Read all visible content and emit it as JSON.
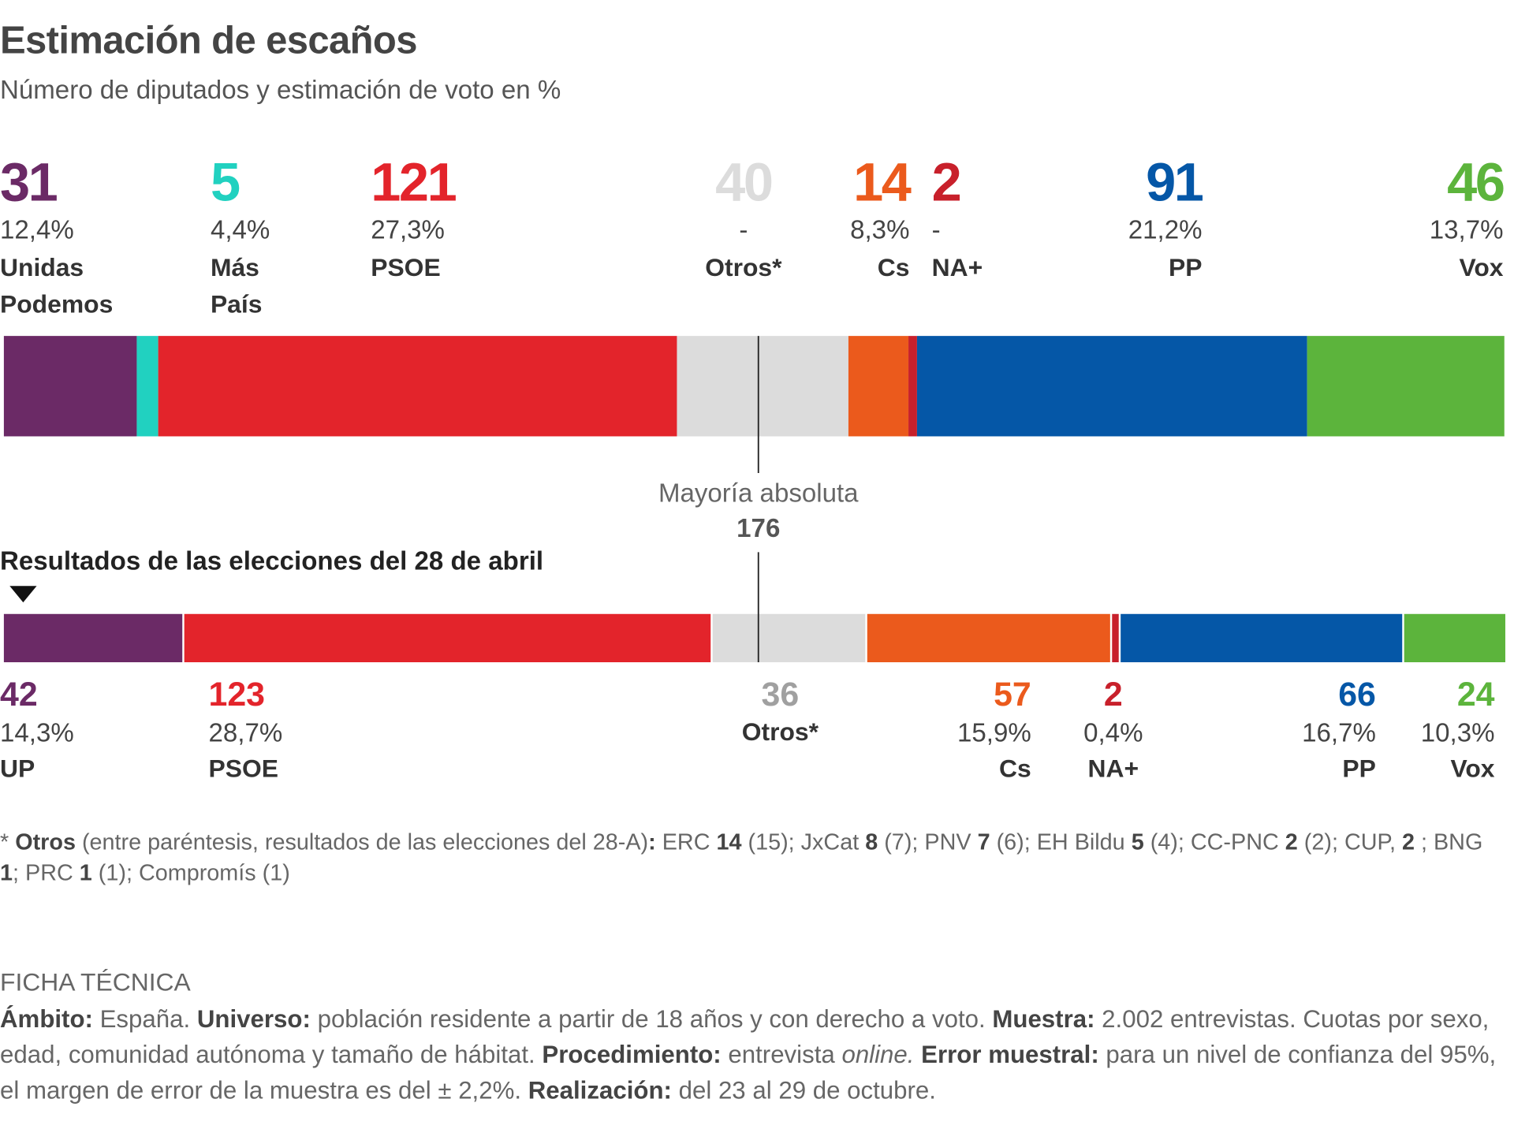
{
  "title": "Estimación de escaños",
  "subtitle": "Número de diputados y estimación de voto en %",
  "chart_data": [
    {
      "type": "seat-bar",
      "categories": [
        "Unidas Podemos",
        "Más País",
        "PSOE",
        "Otros*",
        "Cs",
        "NA+",
        "PP",
        "Vox"
      ],
      "values": [
        31,
        5,
        121,
        40,
        14,
        2,
        91,
        46
      ],
      "vote_share": [
        12.4,
        4.4,
        27.3,
        null,
        8.3,
        null,
        21.2,
        13.7
      ],
      "vote_share_labels": [
        "12,4%",
        "4,4%",
        "27,3%",
        "-",
        "8,3%",
        "-",
        "21,2%",
        "13,7%"
      ],
      "colors": [
        "#6b2a66",
        "#21d1c0",
        "#e3242b",
        "#dcdcdc",
        "#eb5a1c",
        "#c8202b",
        "#0557a7",
        "#5cb43c"
      ],
      "xlim": [
        0,
        350
      ],
      "annotation": "Mayoría absoluta",
      "majority": 176
    },
    {
      "type": "seat-bar",
      "title": "Resultados de las elecciones del 28 de abril",
      "categories": [
        "UP",
        "PSOE",
        "Otros*",
        "Cs",
        "NA+",
        "PP",
        "Vox"
      ],
      "values": [
        42,
        123,
        36,
        57,
        2,
        66,
        24
      ],
      "vote_share": [
        14.3,
        28.7,
        null,
        15.9,
        0.4,
        16.7,
        10.3
      ],
      "vote_share_labels": [
        "14,3%",
        "28,7%",
        "",
        "15,9%",
        "0,4%",
        "16,7%",
        "10,3%"
      ],
      "colors": [
        "#6b2a66",
        "#e3242b",
        "#dcdcdc",
        "#eb5a1c",
        "#c8202b",
        "#0557a7",
        "#5cb43c"
      ],
      "xlim": [
        0,
        350
      ]
    }
  ],
  "footnote": [
    {
      "text": "* "
    },
    {
      "text": "Otros",
      "bold": true
    },
    {
      "text": " (entre paréntesis, resultados de las elecciones del 28-A)"
    },
    {
      "text": ":",
      "bold": true
    },
    {
      "text": " ERC "
    },
    {
      "text": "14",
      "bold": true
    },
    {
      "text": " (15); JxCat "
    },
    {
      "text": "8",
      "bold": true
    },
    {
      "text": " (7); PNV "
    },
    {
      "text": "7",
      "bold": true
    },
    {
      "text": " (6); EH Bildu "
    },
    {
      "text": "5",
      "bold": true
    },
    {
      "text": " (4); CC-PNC "
    },
    {
      "text": "2",
      "bold": true
    },
    {
      "text": " (2); CUP, "
    },
    {
      "text": "2",
      "bold": true
    },
    {
      "text": " ; BNG "
    },
    {
      "text": "1",
      "bold": true
    },
    {
      "text": "; PRC "
    },
    {
      "text": "1",
      "bold": true
    },
    {
      "text": " (1); Compromís (1)"
    }
  ],
  "ficha": {
    "heading": "FICHA TÉCNICA",
    "runs": [
      {
        "text": "Ámbito:",
        "bold": true
      },
      {
        "text": " España. "
      },
      {
        "text": "Universo:",
        "bold": true
      },
      {
        "text": " población residente a partir de 18 años y con derecho a voto. "
      },
      {
        "text": "Muestra:",
        "bold": true
      },
      {
        "text": " 2.002 entrevistas. Cuotas por sexo, edad, comunidad autónoma y tamaño de hábitat. "
      },
      {
        "text": "Procedimiento:",
        "bold": true
      },
      {
        "text": " entrevista "
      },
      {
        "text": "online.",
        "italic": true
      },
      {
        "text": " "
      },
      {
        "text": "Error muestral:",
        "bold": true
      },
      {
        "text": " para un nivel de confianza del 95%, el margen de error de la muestra es del ± 2,2%. "
      },
      {
        "text": "Realización:",
        "bold": true
      },
      {
        "text": " del 23 al 29 de octubre."
      }
    ]
  }
}
